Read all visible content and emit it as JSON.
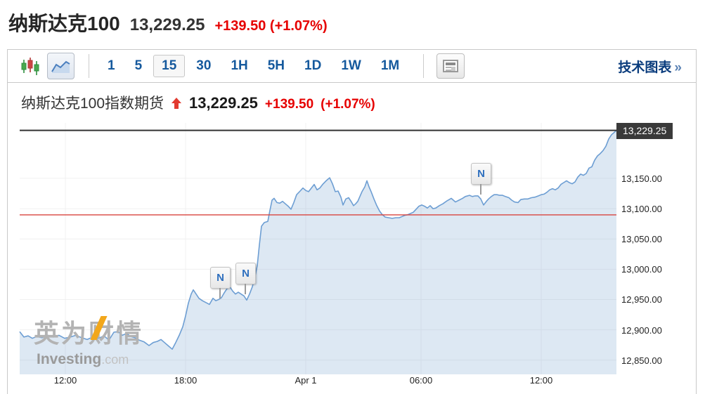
{
  "header": {
    "title": "纳斯达克100",
    "price": "13,229.25",
    "change": "+139.50 (+1.07%)"
  },
  "toolbar": {
    "chart_type_icons": [
      "candlestick-icon",
      "area-chart-icon"
    ],
    "intervals": [
      {
        "label": "1"
      },
      {
        "label": "5"
      },
      {
        "label": "15",
        "active": true
      },
      {
        "label": "30"
      },
      {
        "label": "1H"
      },
      {
        "label": "5H"
      },
      {
        "label": "1D"
      },
      {
        "label": "1W"
      },
      {
        "label": "1M"
      }
    ],
    "news_icon": "news-panel-icon",
    "tech_charts_label": "技术图表",
    "tech_charts_arrow": "»"
  },
  "chart_header": {
    "name": "纳斯达克100指数期货",
    "price": "13,229.25",
    "change": "+139.50",
    "pct": "(+1.07%)"
  },
  "watermark": {
    "cn": "英为财情",
    "en_bold": "Investing",
    "en_suffix": ".com"
  },
  "colors": {
    "line": "#6d9ed3",
    "fill": "rgba(142,178,216,0.30)",
    "prev_close_line": "#d9443f",
    "current_price_line": "#333333",
    "grid": "#f0f0f0",
    "red_text": "#e60000",
    "blue_text": "#15599d"
  },
  "chart_data": {
    "type": "area",
    "title": "纳斯达克100指数期货",
    "current_price": 13229.25,
    "current_price_label": "13,229.25",
    "prev_close": 13089.75,
    "ylim": [
      12826.5,
      13241.5
    ],
    "y_ticks": [
      {
        "value": 13150,
        "label": "13,150.00"
      },
      {
        "value": 13100,
        "label": "13,100.00"
      },
      {
        "value": 13050,
        "label": "13,050.00"
      },
      {
        "value": 13000,
        "label": "13,000.00"
      },
      {
        "value": 12950,
        "label": "12,950.00"
      },
      {
        "value": 12900,
        "label": "12,900.00"
      },
      {
        "value": 12850,
        "label": "12,850.00"
      }
    ],
    "x_ticks": [
      {
        "x": 93,
        "label": "12:00"
      },
      {
        "x": 264,
        "label": "18:00"
      },
      {
        "x": 435,
        "label": "Apr 1"
      },
      {
        "x": 599,
        "label": "06:00"
      },
      {
        "x": 770,
        "label": "12:00"
      }
    ],
    "news_flag_label": "N",
    "news_markers": [
      {
        "x": 313,
        "attach_price": 12950
      },
      {
        "x": 349,
        "attach_price": 12957
      },
      {
        "x": 684,
        "attach_price": 13122
      }
    ],
    "series": [
      {
        "name": "纳斯达克100指数期货",
        "points": [
          [
            28,
            12897
          ],
          [
            34,
            12888
          ],
          [
            40,
            12890
          ],
          [
            46,
            12886
          ],
          [
            52,
            12889
          ],
          [
            60,
            12887
          ],
          [
            68,
            12891
          ],
          [
            76,
            12888
          ],
          [
            84,
            12891
          ],
          [
            92,
            12886
          ],
          [
            100,
            12888
          ],
          [
            108,
            12891
          ],
          [
            116,
            12887
          ],
          [
            124,
            12884
          ],
          [
            132,
            12888
          ],
          [
            140,
            12886
          ],
          [
            148,
            12890
          ],
          [
            155,
            12883
          ],
          [
            162,
            12896
          ],
          [
            168,
            12897
          ],
          [
            174,
            12891
          ],
          [
            180,
            12894
          ],
          [
            186,
            12889
          ],
          [
            192,
            12887
          ],
          [
            198,
            12883
          ],
          [
            205,
            12880
          ],
          [
            212,
            12874
          ],
          [
            218,
            12879
          ],
          [
            224,
            12881
          ],
          [
            229,
            12884
          ],
          [
            234,
            12879
          ],
          [
            240,
            12873
          ],
          [
            245,
            12868
          ],
          [
            250,
            12879
          ],
          [
            255,
            12891
          ],
          [
            260,
            12905
          ],
          [
            264,
            12923
          ],
          [
            268,
            12944
          ],
          [
            272,
            12959
          ],
          [
            275,
            12966
          ],
          [
            279,
            12959
          ],
          [
            283,
            12952
          ],
          [
            288,
            12948
          ],
          [
            293,
            12945
          ],
          [
            298,
            12942
          ],
          [
            303,
            12952
          ],
          [
            307,
            12948
          ],
          [
            311,
            12950
          ],
          [
            315,
            12953
          ],
          [
            319,
            12961
          ],
          [
            323,
            12968
          ],
          [
            327,
            12971
          ],
          [
            331,
            12964
          ],
          [
            335,
            12959
          ],
          [
            339,
            12962
          ],
          [
            343,
            12959
          ],
          [
            347,
            12956
          ],
          [
            351,
            12949
          ],
          [
            355,
            12959
          ],
          [
            359,
            12971
          ],
          [
            363,
            12989
          ],
          [
            366,
            13006
          ],
          [
            369,
            13040
          ],
          [
            372,
            13071
          ],
          [
            376,
            13077
          ],
          [
            381,
            13079
          ],
          [
            384,
            13097
          ],
          [
            387,
            13114
          ],
          [
            390,
            13117
          ],
          [
            394,
            13110
          ],
          [
            398,
            13109
          ],
          [
            402,
            13112
          ],
          [
            406,
            13108
          ],
          [
            410,
            13104
          ],
          [
            414,
            13099
          ],
          [
            418,
            13110
          ],
          [
            422,
            13123
          ],
          [
            427,
            13129
          ],
          [
            431,
            13134
          ],
          [
            435,
            13130
          ],
          [
            439,
            13128
          ],
          [
            443,
            13134
          ],
          [
            447,
            13140
          ],
          [
            451,
            13131
          ],
          [
            455,
            13134
          ],
          [
            459,
            13140
          ],
          [
            464,
            13146
          ],
          [
            469,
            13151
          ],
          [
            473,
            13141
          ],
          [
            477,
            13128
          ],
          [
            481,
            13129
          ],
          [
            485,
            13119
          ],
          [
            488,
            13106
          ],
          [
            492,
            13116
          ],
          [
            496,
            13118
          ],
          [
            500,
            13111
          ],
          [
            503,
            13105
          ],
          [
            506,
            13108
          ],
          [
            509,
            13112
          ],
          [
            512,
            13120
          ],
          [
            515,
            13128
          ],
          [
            519,
            13136
          ],
          [
            522,
            13146
          ],
          [
            525,
            13136
          ],
          [
            528,
            13128
          ],
          [
            532,
            13116
          ],
          [
            536,
            13105
          ],
          [
            540,
            13096
          ],
          [
            544,
            13090
          ],
          [
            548,
            13086
          ],
          [
            553,
            13085
          ],
          [
            558,
            13084
          ],
          [
            563,
            13085
          ],
          [
            568,
            13085
          ],
          [
            572,
            13087
          ],
          [
            576,
            13089
          ],
          [
            580,
            13090
          ],
          [
            584,
            13092
          ],
          [
            588,
            13094
          ],
          [
            592,
            13099
          ],
          [
            596,
            13104
          ],
          [
            600,
            13106
          ],
          [
            604,
            13104
          ],
          [
            608,
            13101
          ],
          [
            612,
            13105
          ],
          [
            616,
            13100
          ],
          [
            620,
            13101
          ],
          [
            625,
            13105
          ],
          [
            630,
            13108
          ],
          [
            636,
            13113
          ],
          [
            642,
            13117
          ],
          [
            648,
            13111
          ],
          [
            653,
            13114
          ],
          [
            658,
            13117
          ],
          [
            662,
            13120
          ],
          [
            668,
            13122
          ],
          [
            672,
            13120
          ],
          [
            676,
            13121
          ],
          [
            680,
            13121
          ],
          [
            684,
            13116
          ],
          [
            688,
            13106
          ],
          [
            692,
            13112
          ],
          [
            695,
            13116
          ],
          [
            699,
            13120
          ],
          [
            703,
            13123
          ],
          [
            707,
            13123
          ],
          [
            711,
            13122
          ],
          [
            715,
            13122
          ],
          [
            719,
            13120
          ],
          [
            724,
            13118
          ],
          [
            728,
            13114
          ],
          [
            732,
            13111
          ],
          [
            737,
            13110
          ],
          [
            741,
            13115
          ],
          [
            746,
            13116
          ],
          [
            751,
            13116
          ],
          [
            756,
            13118
          ],
          [
            761,
            13119
          ],
          [
            766,
            13121
          ],
          [
            770,
            13123
          ],
          [
            774,
            13124
          ],
          [
            778,
            13127
          ],
          [
            782,
            13131
          ],
          [
            786,
            13133
          ],
          [
            790,
            13131
          ],
          [
            794,
            13134
          ],
          [
            798,
            13140
          ],
          [
            802,
            13143
          ],
          [
            806,
            13146
          ],
          [
            810,
            13143
          ],
          [
            814,
            13141
          ],
          [
            818,
            13144
          ],
          [
            822,
            13152
          ],
          [
            826,
            13157
          ],
          [
            830,
            13155
          ],
          [
            834,
            13158
          ],
          [
            838,
            13167
          ],
          [
            842,
            13169
          ],
          [
            846,
            13180
          ],
          [
            850,
            13187
          ],
          [
            854,
            13191
          ],
          [
            858,
            13196
          ],
          [
            862,
            13203
          ],
          [
            866,
            13215
          ],
          [
            870,
            13222
          ],
          [
            874,
            13226
          ],
          [
            877,
            13229.25
          ]
        ]
      }
    ]
  }
}
